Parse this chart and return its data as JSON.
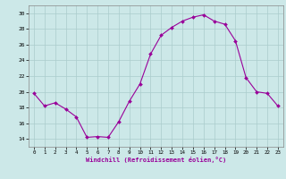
{
  "hours": [
    0,
    1,
    2,
    3,
    4,
    5,
    6,
    7,
    8,
    9,
    10,
    11,
    12,
    13,
    14,
    15,
    16,
    17,
    18,
    19,
    20,
    21,
    22,
    23
  ],
  "values": [
    19.8,
    18.2,
    18.6,
    17.8,
    16.8,
    14.2,
    14.3,
    14.2,
    16.2,
    18.8,
    21.0,
    24.8,
    27.2,
    28.2,
    29.0,
    29.5,
    29.8,
    29.0,
    28.6,
    26.5,
    21.8,
    20.0,
    19.8,
    18.2
  ],
  "line_color": "#990099",
  "marker": "D",
  "marker_size": 2,
  "bg_color": "#cce8e8",
  "grid_color": "#aacccc",
  "xlabel": "Windchill (Refroidissement éolien,°C)",
  "xlabel_color": "#990099",
  "ylim": [
    13,
    31
  ],
  "yticks": [
    14,
    16,
    18,
    20,
    22,
    24,
    26,
    28,
    30
  ],
  "xlim": [
    -0.5,
    23.5
  ],
  "xticks": [
    0,
    1,
    2,
    3,
    4,
    5,
    6,
    7,
    8,
    9,
    10,
    11,
    12,
    13,
    14,
    15,
    16,
    17,
    18,
    19,
    20,
    21,
    22,
    23
  ]
}
